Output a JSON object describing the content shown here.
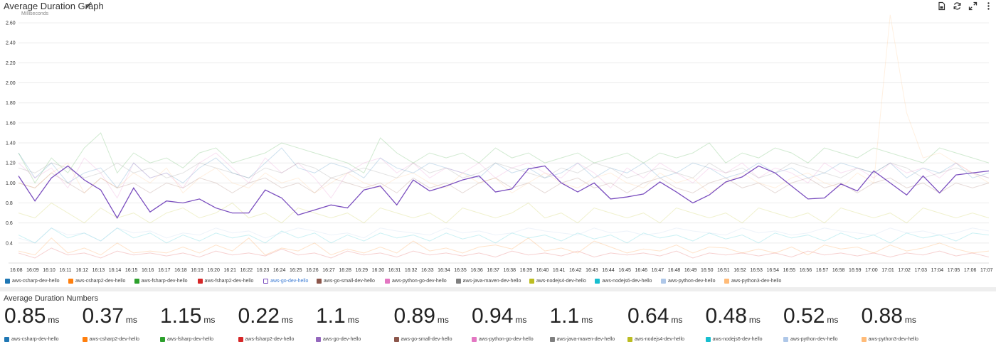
{
  "panel": {
    "title": "Average Duration Graph",
    "edit_icon": "pencil-icon",
    "icons": [
      "save-icon",
      "refresh-icon",
      "expand-icon",
      "more-icon"
    ]
  },
  "chart_data": {
    "type": "line",
    "ylabel": "Milliseconds",
    "ylim": [
      0.2,
      2.7
    ],
    "yticks": [
      "0.4",
      "0.6",
      "0.8",
      "1.00",
      "1.20",
      "1.40",
      "1.60",
      "1.80",
      "2.00",
      "2.20",
      "2.40",
      "2.60"
    ],
    "ytick_values": [
      0.4,
      0.6,
      0.8,
      1.0,
      1.2,
      1.4,
      1.6,
      1.8,
      2.0,
      2.2,
      2.4,
      2.6
    ],
    "categories": [
      "16:08",
      "16:09",
      "16:10",
      "16:11",
      "16:12",
      "16:13",
      "16:14",
      "16:15",
      "16:16",
      "16:17",
      "16:18",
      "16:19",
      "16:20",
      "16:21",
      "16:22",
      "16:23",
      "16:24",
      "16:25",
      "16:26",
      "16:27",
      "16:28",
      "16:29",
      "16:30",
      "16:31",
      "16:32",
      "16:33",
      "16:34",
      "16:35",
      "16:36",
      "16:37",
      "16:38",
      "16:39",
      "16:40",
      "16:41",
      "16:42",
      "16:43",
      "16:44",
      "16:45",
      "16:46",
      "16:47",
      "16:48",
      "16:49",
      "16:50",
      "16:51",
      "16:52",
      "16:53",
      "16:54",
      "16:55",
      "16:56",
      "16:57",
      "16:58",
      "16:59",
      "17:00",
      "17:01",
      "17:02",
      "17:03",
      "17:04",
      "17:05",
      "17:06",
      "17:07"
    ],
    "highlighted_series": 4,
    "series": [
      {
        "name": "aws-csharp-dev-hello",
        "color": "#1f77b4",
        "values": [
          1.3,
          1.05,
          1.2,
          1.0,
          1.1,
          1.15,
          0.95,
          1.2,
          1.05,
          1.1,
          1.0,
          1.15,
          1.25,
          1.1,
          1.05,
          1.2,
          1.35,
          1.15,
          1.1,
          1.2,
          1.15,
          1.05,
          1.25,
          1.15,
          1.1,
          1.2,
          1.15,
          1.1,
          1.05,
          1.2,
          1.1,
          1.15,
          1.05,
          1.1,
          1.2,
          1.05,
          1.15,
          1.1,
          1.2,
          1.05,
          1.1,
          1.2,
          1.15,
          1.05,
          1.1,
          1.2,
          1.1,
          1.15,
          1.05,
          1.1,
          1.2,
          1.15,
          1.1,
          1.2,
          1.05,
          1.15,
          1.1,
          1.2,
          1.05,
          1.1
        ]
      },
      {
        "name": "aws-csharp2-dev-hello",
        "color": "#ff7f0e",
        "values": [
          0.32,
          0.28,
          0.45,
          0.3,
          0.35,
          0.28,
          0.4,
          0.3,
          0.32,
          0.3,
          0.36,
          0.3,
          0.38,
          0.32,
          0.45,
          0.28,
          0.35,
          0.32,
          0.4,
          0.28,
          0.34,
          0.3,
          0.36,
          0.3,
          0.42,
          0.32,
          0.35,
          0.3,
          0.36,
          0.38,
          0.34,
          0.45,
          0.32,
          0.35,
          0.3,
          0.42,
          0.36,
          0.3,
          0.34,
          0.32,
          0.38,
          0.3,
          0.36,
          0.35,
          0.3,
          0.34,
          0.3,
          0.36,
          0.28,
          0.38,
          0.34,
          0.36,
          0.3,
          0.38,
          0.32,
          0.35,
          0.4,
          0.34,
          0.3,
          0.32
        ]
      },
      {
        "name": "aws-fsharp-dev-hello",
        "color": "#2ca02c",
        "values": [
          1.3,
          1.0,
          1.25,
          1.1,
          1.35,
          1.5,
          1.1,
          1.3,
          1.2,
          1.25,
          1.15,
          1.3,
          1.35,
          1.2,
          1.25,
          1.3,
          1.4,
          1.35,
          1.3,
          1.25,
          1.2,
          1.1,
          1.45,
          1.3,
          1.2,
          1.3,
          1.25,
          1.3,
          1.2,
          1.35,
          1.25,
          1.3,
          1.2,
          1.25,
          1.3,
          1.2,
          1.25,
          1.3,
          1.2,
          1.3,
          1.25,
          1.3,
          1.4,
          1.2,
          1.3,
          1.25,
          1.35,
          1.3,
          1.2,
          1.35,
          1.3,
          1.25,
          1.35,
          1.3,
          1.25,
          1.2,
          1.35,
          1.3,
          1.25,
          1.2
        ]
      },
      {
        "name": "aws-fsharp2-dev-hello",
        "color": "#d62728",
        "values": [
          0.3,
          0.25,
          0.35,
          0.28,
          0.3,
          0.25,
          0.32,
          0.28,
          0.3,
          0.27,
          0.3,
          0.26,
          0.32,
          0.28,
          0.3,
          0.27,
          0.34,
          0.28,
          0.3,
          0.25,
          0.32,
          0.28,
          0.3,
          0.26,
          0.32,
          0.28,
          0.3,
          0.27,
          0.3,
          0.26,
          0.32,
          0.28,
          0.3,
          0.27,
          0.32,
          0.26,
          0.3,
          0.28,
          0.3,
          0.27,
          0.32,
          0.25,
          0.3,
          0.28,
          0.3,
          0.27,
          0.3,
          0.26,
          0.32,
          0.28,
          0.3,
          0.27,
          0.3,
          0.26,
          0.3,
          0.28,
          0.32,
          0.27,
          0.3,
          0.26
        ]
      },
      {
        "name": "aws-go-dev-hello",
        "color": "#7b4fbf",
        "values": [
          1.07,
          0.82,
          1.05,
          1.17,
          1.03,
          0.93,
          0.65,
          0.95,
          0.71,
          0.82,
          0.8,
          0.84,
          0.75,
          0.7,
          0.7,
          0.93,
          0.85,
          0.68,
          0.73,
          0.78,
          0.75,
          0.93,
          0.97,
          0.78,
          1.03,
          0.92,
          0.97,
          1.03,
          1.07,
          0.91,
          0.94,
          1.14,
          1.17,
          1.0,
          0.91,
          1.0,
          0.84,
          0.86,
          0.89,
          1.01,
          0.91,
          0.8,
          0.88,
          1.01,
          1.06,
          1.17,
          1.1,
          0.97,
          0.84,
          0.85,
          0.99,
          0.92,
          1.12,
          1.0,
          0.88,
          1.07,
          0.9,
          1.08,
          1.1,
          1.12
        ]
      },
      {
        "name": "aws-go-small-dev-hello",
        "color": "#8c564b",
        "values": [
          1.0,
          0.95,
          1.1,
          1.0,
          0.9,
          1.05,
          0.95,
          1.0,
          0.9,
          1.0,
          0.95,
          1.05,
          1.0,
          0.9,
          1.0,
          1.05,
          0.95,
          1.0,
          0.9,
          1.05,
          1.0,
          0.95,
          1.0,
          0.9,
          1.05,
          0.95,
          1.0,
          0.9,
          1.0,
          1.05,
          0.95,
          1.0,
          0.9,
          1.0,
          1.05,
          0.95,
          1.0,
          0.9,
          1.0,
          1.05,
          0.95,
          0.9,
          1.0,
          1.05,
          0.95,
          1.0,
          0.9,
          1.0,
          1.05,
          0.95,
          1.0,
          0.9,
          1.0,
          1.05,
          0.95,
          1.0,
          0.9,
          1.0,
          0.95,
          1.0
        ]
      },
      {
        "name": "aws-python-go-dev-hello",
        "color": "#e377c2",
        "values": [
          1.2,
          1.05,
          1.15,
          0.95,
          1.25,
          1.1,
          0.85,
          1.2,
          1.05,
          1.1,
          0.95,
          1.2,
          1.3,
          1.15,
          1.0,
          1.25,
          1.1,
          1.2,
          1.05,
          0.85,
          1.1,
          1.2,
          1.25,
          1.1,
          1.2,
          1.05,
          1.15,
          1.1,
          1.2,
          1.05,
          1.15,
          1.2,
          1.1,
          1.05,
          1.2,
          1.1,
          0.95,
          1.15,
          1.05,
          1.2,
          1.1,
          1.0,
          1.15,
          1.1,
          1.2,
          1.05,
          1.15,
          1.1,
          1.0,
          1.2,
          1.1,
          1.15,
          1.05,
          1.2,
          1.1,
          1.15,
          1.05,
          1.2,
          1.1,
          1.05
        ]
      },
      {
        "name": "aws-java-maven-dev-hello",
        "color": "#7f7f7f",
        "values": [
          1.15,
          1.1,
          1.2,
          1.15,
          1.05,
          1.1,
          1.2,
          1.1,
          1.15,
          1.05,
          1.1,
          1.2,
          1.15,
          1.1,
          1.05,
          1.15,
          1.1,
          1.2,
          1.15,
          1.05,
          1.1,
          1.15,
          1.1,
          1.05,
          1.2,
          1.1,
          1.15,
          1.05,
          1.1,
          1.2,
          1.15,
          1.1,
          1.05,
          1.15,
          1.1,
          1.2,
          1.15,
          1.05,
          1.1,
          1.15,
          1.1,
          1.05,
          1.2,
          1.1,
          1.15,
          1.05,
          1.1,
          1.2,
          1.15,
          1.1,
          1.05,
          1.15,
          1.1,
          1.2,
          1.15,
          1.05,
          1.1,
          1.15,
          1.1,
          1.05
        ]
      },
      {
        "name": "aws-nodejs4-dev-hello",
        "color": "#bcbd22",
        "values": [
          0.7,
          0.65,
          0.8,
          0.7,
          0.6,
          0.75,
          0.65,
          0.7,
          0.6,
          0.7,
          0.75,
          0.65,
          0.7,
          0.8,
          0.65,
          0.7,
          0.6,
          0.75,
          0.7,
          0.65,
          0.7,
          0.6,
          0.75,
          0.7,
          0.65,
          0.7,
          0.6,
          0.75,
          0.7,
          0.65,
          0.7,
          0.8,
          0.65,
          0.7,
          0.6,
          0.75,
          0.7,
          0.65,
          0.7,
          0.6,
          0.75,
          0.7,
          0.65,
          0.7,
          0.6,
          0.75,
          0.7,
          0.65,
          0.7,
          0.6,
          0.75,
          0.7,
          0.65,
          0.7,
          0.6,
          0.75,
          0.7,
          0.65,
          0.7,
          0.65
        ]
      },
      {
        "name": "aws-nodejs6-dev-hello",
        "color": "#17becf",
        "values": [
          0.48,
          0.4,
          0.55,
          0.45,
          0.5,
          0.42,
          0.55,
          0.45,
          0.5,
          0.4,
          0.48,
          0.42,
          0.5,
          0.45,
          0.48,
          0.4,
          0.52,
          0.45,
          0.5,
          0.4,
          0.48,
          0.42,
          0.5,
          0.45,
          0.48,
          0.42,
          0.5,
          0.44,
          0.48,
          0.4,
          0.5,
          0.45,
          0.48,
          0.42,
          0.5,
          0.44,
          0.48,
          0.4,
          0.5,
          0.45,
          0.48,
          0.42,
          0.5,
          0.44,
          0.48,
          0.4,
          0.5,
          0.45,
          0.48,
          0.42,
          0.5,
          0.44,
          0.48,
          0.4,
          0.5,
          0.45,
          0.48,
          0.42,
          0.5,
          0.48
        ]
      },
      {
        "name": "aws-python-dev-hello",
        "color": "#aec7e8",
        "values": [
          0.45,
          0.4,
          0.55,
          0.48,
          0.5,
          0.42,
          0.55,
          0.5,
          0.52,
          0.45,
          0.5,
          0.48,
          0.55,
          0.5,
          0.52,
          0.45,
          0.5,
          0.55,
          0.52,
          0.48,
          0.5,
          0.45,
          0.55,
          0.52,
          0.5,
          0.48,
          0.55,
          0.5,
          0.52,
          0.48,
          0.5,
          0.55,
          0.52,
          0.5,
          0.48,
          0.55,
          0.5,
          0.52,
          0.48,
          0.5,
          0.55,
          0.52,
          0.5,
          0.48,
          0.55,
          0.5,
          0.52,
          0.48,
          0.5,
          0.55,
          0.52,
          0.5,
          0.48,
          0.55,
          0.5,
          0.52,
          0.48,
          0.5,
          0.55,
          0.52
        ]
      },
      {
        "name": "aws-python3-dev-hello",
        "color": "#ffbb78",
        "values": [
          1.0,
          0.95,
          1.1,
          1.2,
          0.9,
          1.05,
          0.95,
          1.1,
          1.0,
          1.15,
          0.9,
          1.05,
          1.15,
          1.0,
          0.95,
          1.1,
          1.0,
          1.05,
          0.9,
          1.0,
          1.1,
          1.0,
          0.95,
          1.05,
          1.1,
          1.0,
          0.95,
          1.1,
          1.0,
          1.05,
          0.9,
          1.0,
          1.1,
          1.0,
          0.95,
          1.05,
          1.1,
          1.0,
          0.95,
          1.1,
          1.0,
          1.05,
          0.9,
          1.0,
          1.1,
          1.0,
          0.95,
          1.05,
          1.1,
          1.0,
          0.95,
          1.1,
          1.0,
          2.68,
          1.7,
          1.25,
          1.3,
          1.2,
          1.1,
          1.0
        ]
      }
    ]
  },
  "numbers": {
    "title": "Average Duration Numbers",
    "unit": "ms",
    "items": [
      {
        "value": "0.85",
        "name": "aws-csharp-dev-hello",
        "color": "#1f77b4"
      },
      {
        "value": "0.37",
        "name": "aws-csharp2-dev-hello",
        "color": "#ff7f0e"
      },
      {
        "value": "1.15",
        "name": "aws-fsharp-dev-hello",
        "color": "#2ca02c"
      },
      {
        "value": "0.22",
        "name": "aws-fsharp2-dev-hello",
        "color": "#d62728"
      },
      {
        "value": "1.1",
        "name": "aws-go-dev-hello",
        "color": "#9467bd"
      },
      {
        "value": "0.89",
        "name": "aws-go-small-dev-hello",
        "color": "#8c564b"
      },
      {
        "value": "0.94",
        "name": "aws-python-go-dev-hello",
        "color": "#e377c2"
      },
      {
        "value": "1.1",
        "name": "aws-java-maven-dev-hello",
        "color": "#7f7f7f"
      },
      {
        "value": "0.64",
        "name": "aws-nodejs4-dev-hello",
        "color": "#bcbd22"
      },
      {
        "value": "0.48",
        "name": "aws-nodejs6-dev-hello",
        "color": "#17becf"
      },
      {
        "value": "0.52",
        "name": "aws-python-dev-hello",
        "color": "#aec7e8"
      },
      {
        "value": "0.88",
        "name": "aws-python3-dev-hello",
        "color": "#ffbb78"
      }
    ]
  }
}
